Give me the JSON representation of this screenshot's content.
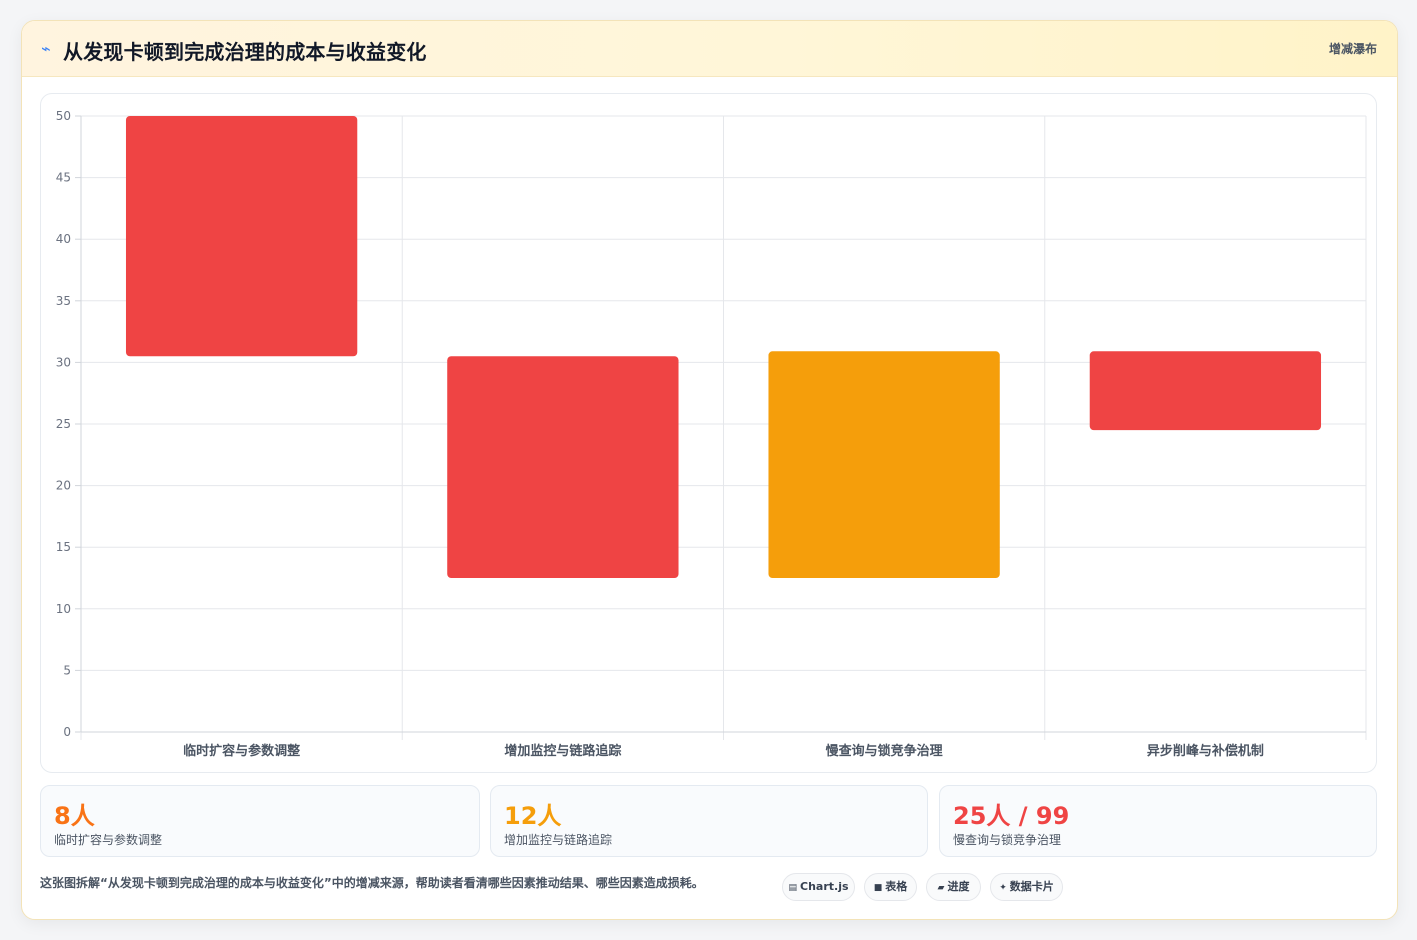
{
  "header": {
    "icon": "lightning-icon",
    "title": "从发现卡顿到完成治理的成本与收益变化",
    "tag": "增减瀑布"
  },
  "chart_data": {
    "type": "bar",
    "subtype": "floating-waterfall",
    "categories": [
      "临时扩容与参数调整",
      "增加监控与链路追踪",
      "慢查询与锁竞争治理",
      "异步削峰与补偿机制"
    ],
    "ranges": [
      [
        30.5,
        50
      ],
      [
        12.5,
        30.5
      ],
      [
        12.5,
        30.9
      ],
      [
        24.5,
        30.9
      ]
    ],
    "colors": [
      "#ef4444",
      "#ef4444",
      "#f59e0b",
      "#ef4444"
    ],
    "ylim": [
      0,
      50
    ],
    "yticks": [
      0,
      5,
      10,
      15,
      20,
      25,
      30,
      35,
      40,
      45,
      50
    ],
    "grid": true
  },
  "stats": [
    {
      "value": "8人",
      "label": "临时扩容与参数调整",
      "color": "#f97316"
    },
    {
      "value": "12人",
      "label": "增加监控与链路追踪",
      "color": "#f59e0b"
    },
    {
      "value": "25人 / 99",
      "label": "慢查询与锁竞争治理",
      "color": "#ef4444"
    }
  ],
  "footer": {
    "text": "这张图拆解“从发现卡顿到完成治理的成本与收益变化”中的增减来源，帮助读者看清哪些因素推动结果、哪些因素造成损耗。",
    "chips": [
      {
        "icon": "chart-icon",
        "glyph": "▤",
        "label": "Chart.js"
      },
      {
        "icon": "table-icon",
        "glyph": "■",
        "label": "表格"
      },
      {
        "icon": "progress-icon",
        "glyph": "▰",
        "label": "进度"
      },
      {
        "icon": "card-icon",
        "glyph": "✦",
        "label": "数据卡片"
      }
    ]
  }
}
